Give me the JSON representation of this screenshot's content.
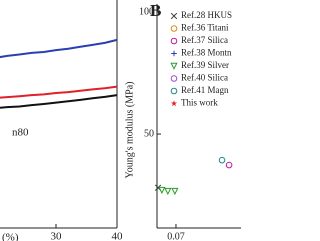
{
  "chart_data": [
    {
      "type": "line",
      "xlabel": "(%)",
      "annotation": "n80",
      "x": [
        20,
        22,
        24,
        26,
        28,
        30,
        32,
        34,
        36,
        38,
        40
      ],
      "xlim": [
        20,
        40
      ],
      "xticks": [
        30,
        40
      ],
      "ylim": [
        0,
        100
      ],
      "series": [
        {
          "color": "#2a3fb0",
          "values": [
            74.6,
            75.5,
            76.1,
            76.8,
            77.2,
            78.0,
            78.6,
            79.5,
            80.3,
            81.2,
            82.5
          ]
        },
        {
          "color": "#e0202a",
          "values": [
            57.0,
            57.4,
            57.8,
            58.3,
            58.6,
            59.2,
            59.6,
            60.2,
            60.8,
            61.3,
            62.0
          ]
        },
        {
          "color": "#111111",
          "values": [
            52.6,
            53.0,
            53.3,
            53.9,
            54.4,
            55.0,
            55.6,
            56.2,
            56.9,
            57.5,
            58.3
          ]
        }
      ]
    },
    {
      "type": "scatter",
      "panel": "B",
      "ylabel": "Young's modulus (MPa)",
      "xlim": [
        0.0665,
        0.082
      ],
      "xticks": [
        0.07
      ],
      "ylim": [
        11.5,
        100
      ],
      "yticks": [
        50,
        100
      ],
      "series": [
        {
          "name": "Ref.28 HKUS",
          "color": "#333333",
          "marker": "x",
          "x": [
            0.0667
          ],
          "values": [
            28
          ]
        },
        {
          "name": "Ref.36 Titani",
          "color": "#e08a1e",
          "marker": "circle",
          "x": [],
          "values": []
        },
        {
          "name": "Ref.37 Silica",
          "color": "#c2189c",
          "marker": "circle",
          "x": [
            0.0798
          ],
          "values": [
            37.3
          ]
        },
        {
          "name": "Ref.38 Montn",
          "color": "#2a3fb0",
          "marker": "plus",
          "x": [],
          "values": []
        },
        {
          "name": "Ref.39 Silver",
          "color": "#2a9a2a",
          "marker": "triangle",
          "x": [
            0.0674,
            0.0685,
            0.0698
          ],
          "values": [
            27,
            26.6,
            26.6
          ]
        },
        {
          "name": "Ref.40 Silica",
          "color": "#9a4fd0",
          "marker": "circle",
          "x": [],
          "values": []
        },
        {
          "name": "Ref.41 Magn",
          "color": "#1a8a8a",
          "marker": "circle",
          "x": [
            0.0785
          ],
          "values": [
            39.3
          ]
        },
        {
          "name": "This work",
          "color": "#e0202a",
          "marker": "star",
          "x": [],
          "values": []
        }
      ]
    }
  ]
}
